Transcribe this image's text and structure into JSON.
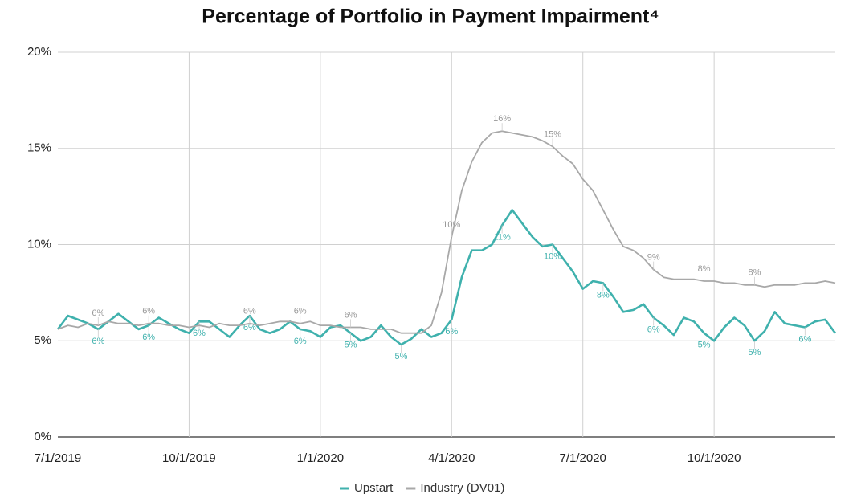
{
  "chart_data": {
    "type": "line",
    "title": "Percentage of Portfolio in Payment Impairment⁴",
    "categories": [
      "7/1/2019",
      null,
      null,
      null,
      null,
      null,
      null,
      null,
      null,
      null,
      null,
      null,
      null,
      "10/1/2019",
      null,
      null,
      null,
      null,
      null,
      null,
      null,
      null,
      null,
      null,
      null,
      null,
      "1/1/2020",
      null,
      null,
      null,
      null,
      null,
      null,
      null,
      null,
      null,
      null,
      null,
      null,
      "4/1/2020",
      null,
      null,
      null,
      null,
      null,
      null,
      null,
      null,
      null,
      null,
      null,
      null,
      "7/1/2020",
      null,
      null,
      null,
      null,
      null,
      null,
      null,
      null,
      null,
      null,
      null,
      null,
      "10/1/2020",
      null,
      null,
      null,
      null,
      null,
      null,
      null,
      null,
      null,
      null,
      null,
      null
    ],
    "series": [
      {
        "name": "Upstart",
        "color": "#3fb1ad",
        "values": [
          5.6,
          6.3,
          6.1,
          5.9,
          5.6,
          6.0,
          6.4,
          6.0,
          5.6,
          5.8,
          6.2,
          5.9,
          5.6,
          5.4,
          6.0,
          6.0,
          5.6,
          5.2,
          5.8,
          6.3,
          5.6,
          5.4,
          5.6,
          6.0,
          5.6,
          5.5,
          5.2,
          5.7,
          5.8,
          5.4,
          5.0,
          5.2,
          5.8,
          5.2,
          4.8,
          5.1,
          5.6,
          5.2,
          5.4,
          6.1,
          8.3,
          9.7,
          9.7,
          10.0,
          11.0,
          11.8,
          11.1,
          10.4,
          9.9,
          10.0,
          9.3,
          8.6,
          7.7,
          8.1,
          8.0,
          7.3,
          6.5,
          6.6,
          6.9,
          6.2,
          5.8,
          5.3,
          6.2,
          6.0,
          5.4,
          5.0,
          5.7,
          6.2,
          5.8,
          5.0,
          5.5,
          6.5,
          5.9,
          5.8,
          5.7,
          6.0,
          6.1,
          5.4
        ],
        "value_labels": [
          null,
          null,
          null,
          null,
          "6%",
          null,
          null,
          null,
          null,
          "6%",
          null,
          null,
          null,
          null,
          "6%",
          null,
          null,
          null,
          null,
          "6%",
          null,
          null,
          null,
          null,
          "6%",
          null,
          null,
          null,
          null,
          "5%",
          null,
          null,
          null,
          null,
          "5%",
          null,
          null,
          null,
          null,
          "6%",
          null,
          null,
          null,
          null,
          "11%",
          null,
          null,
          null,
          null,
          "10%",
          null,
          null,
          null,
          null,
          "8%",
          null,
          null,
          null,
          null,
          "6%",
          null,
          null,
          null,
          null,
          "5%",
          null,
          null,
          null,
          null,
          "5%",
          null,
          null,
          null,
          null,
          "6%",
          null,
          null,
          null
        ]
      },
      {
        "name": "Industry (DV01)",
        "color": "#a8a8a8",
        "values": [
          5.6,
          5.8,
          5.7,
          5.9,
          5.8,
          6.0,
          5.9,
          5.9,
          5.8,
          5.9,
          5.9,
          5.8,
          5.8,
          5.7,
          5.8,
          5.7,
          5.9,
          5.8,
          5.8,
          5.9,
          5.8,
          5.9,
          6.0,
          6.0,
          5.9,
          6.0,
          5.8,
          5.8,
          5.7,
          5.7,
          5.7,
          5.6,
          5.6,
          5.6,
          5.4,
          5.4,
          5.4,
          5.8,
          7.5,
          10.4,
          12.8,
          14.3,
          15.3,
          15.8,
          15.9,
          15.8,
          15.7,
          15.6,
          15.4,
          15.1,
          14.6,
          14.2,
          13.4,
          12.8,
          11.8,
          10.8,
          9.9,
          9.7,
          9.3,
          8.7,
          8.3,
          8.2,
          8.2,
          8.2,
          8.1,
          8.1,
          8.0,
          8.0,
          7.9,
          7.9,
          7.8,
          7.9,
          7.9,
          7.9,
          8.0,
          8.0,
          8.1,
          8.0
        ],
        "value_labels": [
          null,
          null,
          null,
          null,
          "6%",
          null,
          null,
          null,
          null,
          "6%",
          null,
          null,
          null,
          null,
          null,
          null,
          null,
          null,
          null,
          "6%",
          null,
          null,
          null,
          null,
          "6%",
          null,
          null,
          null,
          null,
          "6%",
          null,
          null,
          null,
          null,
          null,
          null,
          null,
          null,
          null,
          "10%",
          null,
          null,
          null,
          null,
          "16%",
          null,
          null,
          null,
          null,
          "15%",
          null,
          null,
          null,
          null,
          null,
          null,
          null,
          null,
          null,
          "9%",
          null,
          null,
          null,
          null,
          "8%",
          null,
          null,
          null,
          null,
          "8%",
          null,
          null,
          null,
          null,
          null,
          null,
          null,
          null
        ]
      }
    ],
    "ylim": [
      0,
      20
    ],
    "yticks": [
      {
        "value": 0,
        "label": "0%"
      },
      {
        "value": 5,
        "label": "5%"
      },
      {
        "value": 10,
        "label": "10%"
      },
      {
        "value": 15,
        "label": "15%"
      },
      {
        "value": 20,
        "label": "20%"
      }
    ],
    "grid": true,
    "legend": "bottom"
  }
}
